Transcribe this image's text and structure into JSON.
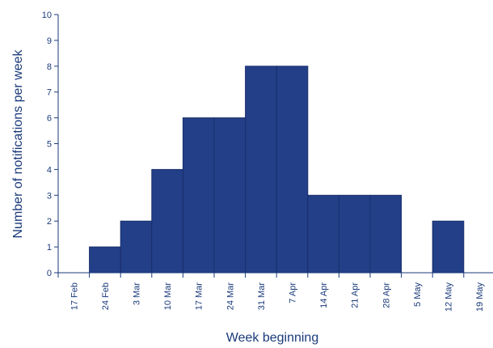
{
  "chart_data": {
    "type": "bar",
    "categories": [
      "17 Feb",
      "24 Feb",
      "3 Mar",
      "10 Mar",
      "17 Mar",
      "24 Mar",
      "31 Mar",
      "7 Apr",
      "14 Apr",
      "21 Apr",
      "28 Apr",
      "5 May",
      "12 May",
      "19 May"
    ],
    "values": [
      0,
      1,
      2,
      4,
      6,
      6,
      8,
      8,
      3,
      3,
      3,
      0,
      2,
      0
    ],
    "title": "",
    "xlabel": "Week beginning",
    "ylabel": "Number of notifications per week",
    "ylim": [
      0,
      10
    ],
    "yticks": [
      0,
      1,
      2,
      3,
      4,
      5,
      6,
      7,
      8,
      9,
      10
    ],
    "grid": false,
    "bar_color": "#223f88",
    "axis_color": "#1a3a7a"
  }
}
